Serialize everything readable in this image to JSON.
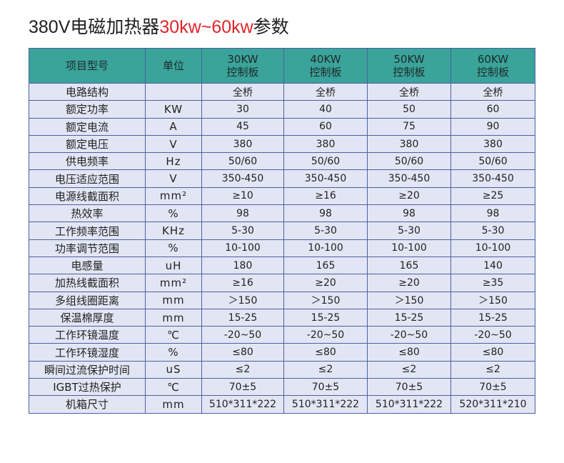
{
  "title": {
    "prefix": "380V电磁加热器",
    "accent": "30kw~60kw",
    "suffix": "参数"
  },
  "colors": {
    "header_bg": "#3aa39a",
    "row_bg": "#e2e6f4",
    "border": "#4d5fa3",
    "accent": "#e0242b"
  },
  "table": {
    "headers": [
      {
        "line1": "项目型号",
        "line2": ""
      },
      {
        "line1": "单位",
        "line2": ""
      },
      {
        "line1": "30KW",
        "line2": "控制板"
      },
      {
        "line1": "40KW",
        "line2": "控制板"
      },
      {
        "line1": "50KW",
        "line2": "控制板"
      },
      {
        "line1": "60KW",
        "line2": "控制板"
      }
    ],
    "rows": [
      {
        "param": "电路结构",
        "unit": "",
        "values": [
          "全桥",
          "全桥",
          "全桥",
          "全桥"
        ]
      },
      {
        "param": "额定功率",
        "unit": "KW",
        "values": [
          "30",
          "40",
          "50",
          "60"
        ]
      },
      {
        "param": "额定电流",
        "unit": "A",
        "values": [
          "45",
          "60",
          "75",
          "90"
        ]
      },
      {
        "param": "额定电压",
        "unit": "V",
        "values": [
          "380",
          "380",
          "380",
          "380"
        ]
      },
      {
        "param": "供电频率",
        "unit": "Hz",
        "values": [
          "50/60",
          "50/60",
          "50/60",
          "50/60"
        ]
      },
      {
        "param": "电压适应范围",
        "unit": "V",
        "values": [
          "350-450",
          "350-450",
          "350-450",
          "350-450"
        ]
      },
      {
        "param": "电源线截面积",
        "unit": "mm²",
        "values": [
          "≥10",
          "≥16",
          "≥20",
          "≥25"
        ]
      },
      {
        "param": "热效率",
        "unit": "%",
        "values": [
          "98",
          "98",
          "98",
          "98"
        ]
      },
      {
        "param": "工作频率范围",
        "unit": "KHz",
        "values": [
          "5-30",
          "5-30",
          "5-30",
          "5-30"
        ]
      },
      {
        "param": "功率调节范围",
        "unit": "%",
        "values": [
          "10-100",
          "10-100",
          "10-100",
          "10-100"
        ]
      },
      {
        "param": "电感量",
        "unit": "uH",
        "values": [
          "180",
          "165",
          "165",
          "140"
        ]
      },
      {
        "param": "加热线截面积",
        "unit": "mm²",
        "values": [
          "≥16",
          "≥20",
          "≥20",
          "≥35"
        ]
      },
      {
        "param": "多组线圈距离",
        "unit": "mm",
        "values": [
          "＞150",
          "＞150",
          "＞150",
          "＞150"
        ]
      },
      {
        "param": "保温棉厚度",
        "unit": "mm",
        "values": [
          "15-25",
          "15-25",
          "15-25",
          "15-25"
        ]
      },
      {
        "param": "工作环镜温度",
        "unit": "℃",
        "values": [
          "-20~50",
          "-20~50",
          "-20~50",
          "-20~50"
        ]
      },
      {
        "param": "工作环镜湿度",
        "unit": "%",
        "values": [
          "≤80",
          "≤80",
          "≤80",
          "≤80"
        ]
      },
      {
        "param": "瞬间过流保护时间",
        "unit": "uS",
        "values": [
          "≤2",
          "≤2",
          "≤2",
          "≤2"
        ]
      },
      {
        "param": "IGBT过热保护",
        "unit": "℃",
        "values": [
          "70±5",
          "70±5",
          "70±5",
          "70±5"
        ]
      },
      {
        "param": "机箱尺寸",
        "unit": "mm",
        "values": [
          "510*311*222",
          "510*311*222",
          "510*311*222",
          "520*311*210"
        ]
      }
    ]
  }
}
